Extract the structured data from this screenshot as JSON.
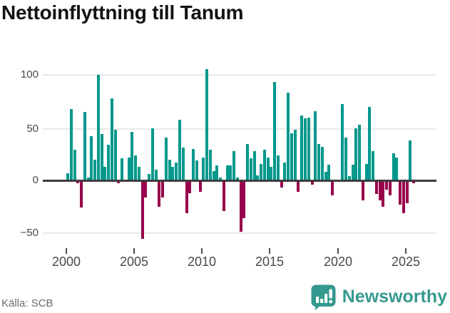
{
  "title": "Nettoinflyttning till Tanum",
  "source": "Källa: SCB",
  "branding": {
    "name": "Newsworthy",
    "color": "#35998f",
    "icon": "speech-bubble-bar-chart-exclamation"
  },
  "colors": {
    "positive_bar": "#00988b",
    "negative_bar": "#98004b",
    "zero_axis": "#3d3d3d",
    "gridline": "#e8e8e8",
    "axis_label": "#4a4a4a",
    "title_text": "#121212",
    "source_text": "#6a6a74"
  },
  "chart_data": {
    "type": "bar",
    "title": "Nettoinflyttning till Tanum",
    "xlabel": "",
    "ylabel": "",
    "frequency": "quarterly",
    "x_start": "2000-Q1",
    "x_end": "2025-Q3",
    "x_tick_labels": [
      "2000",
      "2005",
      "2010",
      "2015",
      "2020",
      "2025"
    ],
    "y_tick_labels": [
      "100",
      "50",
      "0",
      "−50"
    ],
    "y_ticks": [
      100,
      50,
      0,
      -50
    ],
    "ylim": [
      -64.6,
      114.3
    ],
    "grid": "horizontal",
    "legend": "none",
    "values": [
      7,
      68,
      29,
      -2,
      -25,
      65,
      3,
      42,
      20,
      101,
      44,
      13,
      34,
      78,
      48,
      -2,
      21,
      0,
      22,
      46,
      24,
      13,
      -55,
      -15,
      6,
      50,
      10,
      -24,
      -15,
      41,
      20,
      13,
      17,
      58,
      31,
      -30,
      -11,
      30,
      19,
      -10,
      22,
      106,
      29,
      9,
      14,
      3,
      -28,
      14,
      14,
      28,
      3,
      -48,
      -35,
      35,
      21,
      28,
      5,
      16,
      29,
      22,
      13,
      94,
      24,
      -6,
      17,
      84,
      45,
      48,
      -10,
      62,
      59,
      60,
      -3,
      66,
      35,
      32,
      8,
      15,
      -13,
      0,
      0,
      73,
      41,
      4,
      15,
      50,
      53,
      -18,
      16,
      70,
      28,
      -12,
      -18,
      -24,
      -8,
      -13,
      26,
      22,
      -22,
      -30,
      -21,
      38,
      -2
    ]
  }
}
